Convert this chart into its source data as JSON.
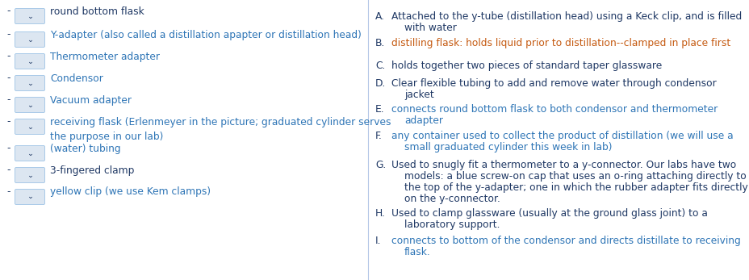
{
  "bg_color": "#ffffff",
  "left_items": [
    {
      "text": "round bottom flask",
      "color": "#1f3864",
      "wrap2": null
    },
    {
      "text": "Y-adapter (also called a distillation apapter or distillation head)",
      "color": "#2e75b6",
      "wrap2": null
    },
    {
      "text": "Thermometer adapter",
      "color": "#2e75b6",
      "wrap2": null
    },
    {
      "text": "Condensor",
      "color": "#2e75b6",
      "wrap2": null
    },
    {
      "text": "Vacuum adapter",
      "color": "#2e75b6",
      "wrap2": null
    },
    {
      "text": "receiving flask (Erlenmeyer in the picture; graduated cylinder serves",
      "color": "#2e75b6",
      "wrap2": "the purpose in our lab)"
    },
    {
      "text": "(water) tubing",
      "color": "#2e75b6",
      "wrap2": null
    },
    {
      "text": "3-fingered clamp",
      "color": "#1f3864",
      "wrap2": null
    },
    {
      "text": "yellow clip (we use Kem clamps)",
      "color": "#2e75b6",
      "wrap2": null
    }
  ],
  "right_items": [
    {
      "label": "A.",
      "text": "Attached to the y-tube (distillation head) using a Keck clip, and is filled",
      "text2": "with water",
      "text_color": "#1f3864"
    },
    {
      "label": "B.",
      "text": "distilling flask: holds liquid prior to distillation--clamped in place first",
      "text2": null,
      "text_color": "#c55a11"
    },
    {
      "label": "C.",
      "text": "holds together two pieces of standard taper glassware",
      "text2": null,
      "text_color": "#1f3864"
    },
    {
      "label": "D.",
      "text": "Clear flexible tubing to add and remove water through condensor",
      "text2": "jacket",
      "text_color": "#1f3864"
    },
    {
      "label": "E.",
      "text": "connects round bottom flask to both condensor and thermometer",
      "text2": "adapter",
      "text_color": "#2e75b6"
    },
    {
      "label": "F.",
      "text": "any container used to collect the product of distillation (we will use a",
      "text2": "small graduated cylinder this week in lab)",
      "text_color": "#2e75b6"
    },
    {
      "label": "G.",
      "text": "Used to snugly fit a thermometer to a y-connector. Our labs have two",
      "text2": "models: a blue screw-on cap that uses an o-ring attaching directly to\nthe top of the y-adapter; one in which the rubber adapter fits directly\non the y-connector.",
      "text_color": "#1f3864"
    },
    {
      "label": "H.",
      "text": "Used to clamp glassware (usually at the ground glass joint) to a",
      "text2": "laboratory support.",
      "text_color": "#1f3864"
    },
    {
      "label": "I.",
      "text": "connects to bottom of the condensor and directs distillate to receiving",
      "text2": "flask.",
      "text_color": "#2e75b6"
    }
  ],
  "label_color": "#1f3864",
  "dash_color": "#1f3864",
  "box_fill": "#dce6f1",
  "box_edge": "#9dc3e6",
  "chevron_color": "#1f3864",
  "divider_color": "#b4c7e7",
  "fontsize": 8.8,
  "lh": 28,
  "fig_w": 9.29,
  "fig_h": 3.47,
  "dpi": 100
}
